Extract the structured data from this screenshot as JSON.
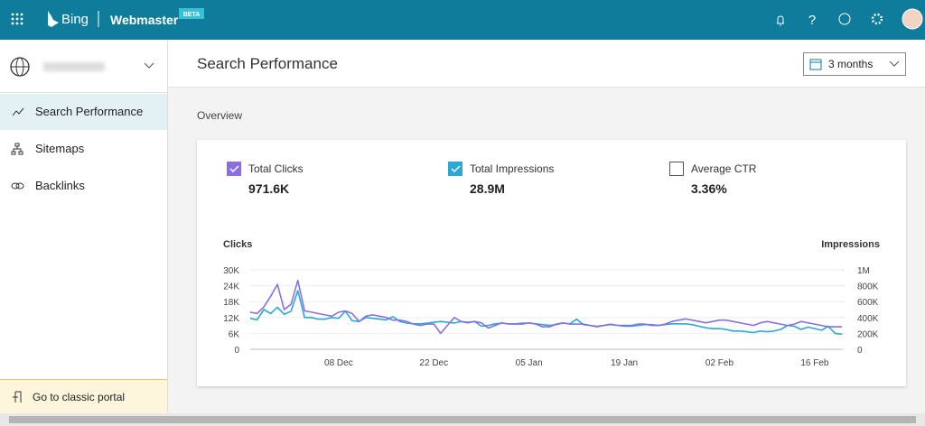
{
  "header": {
    "brand": "Bing",
    "product": "Webmaster",
    "badge": "BETA"
  },
  "sidebar": {
    "nav": [
      "Search Performance",
      "Sitemaps",
      "Backlinks"
    ],
    "footer": "Go to classic portal"
  },
  "main": {
    "title": "Search Performance",
    "date_range": "3 months",
    "section": "Overview",
    "metrics": [
      {
        "label": "Total Clicks",
        "value": "971.6K",
        "checked": true
      },
      {
        "label": "Total Impressions",
        "value": "28.9M",
        "checked": true
      },
      {
        "label": "Average CTR",
        "value": "3.36%",
        "checked": false
      }
    ]
  },
  "chart_data": {
    "type": "line",
    "y_label": "Clicks",
    "y2_label": "Impressions",
    "grid": true,
    "categories": [
      null,
      null,
      null,
      null,
      null,
      null,
      null,
      null,
      null,
      null,
      null,
      null,
      null,
      "08 Dec",
      null,
      null,
      null,
      null,
      null,
      null,
      null,
      null,
      null,
      null,
      null,
      null,
      null,
      "22 Dec",
      null,
      null,
      null,
      null,
      null,
      null,
      null,
      null,
      null,
      null,
      null,
      null,
      null,
      "05 Jan",
      null,
      null,
      null,
      null,
      null,
      null,
      null,
      null,
      null,
      null,
      null,
      null,
      null,
      "19 Jan",
      null,
      null,
      null,
      null,
      null,
      null,
      null,
      null,
      null,
      null,
      null,
      null,
      null,
      "02 Feb",
      null,
      null,
      null,
      null,
      null,
      null,
      null,
      null,
      null,
      null,
      null,
      null,
      null,
      "16 Feb",
      null,
      null,
      null,
      null
    ],
    "ylim": [
      0,
      30000
    ],
    "yticks": [
      0,
      {
        "value": 6000,
        "label": "6K"
      },
      {
        "value": 12000,
        "label": "12K"
      },
      {
        "value": 18000,
        "label": "18K"
      },
      {
        "value": 24000,
        "label": "24K"
      },
      {
        "value": 30000,
        "label": "30K"
      }
    ],
    "y2lim": [
      0,
      1000000
    ],
    "y2ticks": [
      0,
      {
        "value": 200000,
        "label": "200K"
      },
      {
        "value": 400000,
        "label": "400K"
      },
      {
        "value": 600000,
        "label": "600K"
      },
      {
        "value": 800000,
        "label": "800K"
      },
      {
        "value": 1000000,
        "label": "1M"
      }
    ],
    "series": [
      {
        "name": "Total Clicks",
        "color": "#8b6fe0",
        "values": [
          14000,
          13500,
          16000,
          20000,
          24500,
          15000,
          17000,
          26000,
          14500,
          14000,
          13500,
          13000,
          12500,
          14000,
          14500,
          13500,
          10500,
          12500,
          13000,
          12500,
          12000,
          11000,
          11000,
          10500,
          9500,
          9000,
          9500,
          9500,
          6000,
          9000,
          12000,
          10500,
          10000,
          10500,
          10000,
          8000,
          9000,
          10000,
          9500,
          9500,
          9500,
          10000,
          9500,
          8500,
          8500,
          9500,
          10000,
          9500,
          9500,
          9500,
          9000,
          8500,
          9000,
          9500,
          9000,
          9000,
          9000,
          9500,
          9500,
          9000,
          9000,
          9500,
          10500,
          11000,
          11500,
          11000,
          10500,
          10000,
          10500,
          11000,
          11000,
          10500,
          10000,
          9500,
          9000,
          10000,
          10500,
          10000,
          9500,
          9000,
          9500,
          10500,
          10000,
          9500,
          9000,
          8500,
          8500,
          8500
        ]
      },
      {
        "name": "Total Impressions",
        "color": "#2ba9d6",
        "axis": "y2",
        "values": [
          390000,
          370000,
          500000,
          450000,
          530000,
          440000,
          480000,
          740000,
          400000,
          400000,
          380000,
          380000,
          400000,
          390000,
          480000,
          360000,
          350000,
          400000,
          390000,
          380000,
          370000,
          410000,
          350000,
          330000,
          320000,
          320000,
          330000,
          340000,
          350000,
          340000,
          330000,
          350000,
          340000,
          350000,
          290000,
          300000,
          320000,
          330000,
          320000,
          320000,
          330000,
          330000,
          320000,
          310000,
          300000,
          310000,
          330000,
          320000,
          380000,
          310000,
          300000,
          290000,
          300000,
          310000,
          300000,
          290000,
          290000,
          300000,
          310000,
          310000,
          300000,
          310000,
          320000,
          320000,
          320000,
          310000,
          290000,
          270000,
          260000,
          260000,
          250000,
          230000,
          230000,
          220000,
          210000,
          230000,
          220000,
          230000,
          250000,
          300000,
          290000,
          250000,
          280000,
          260000,
          240000,
          290000,
          200000,
          190000
        ]
      }
    ]
  }
}
